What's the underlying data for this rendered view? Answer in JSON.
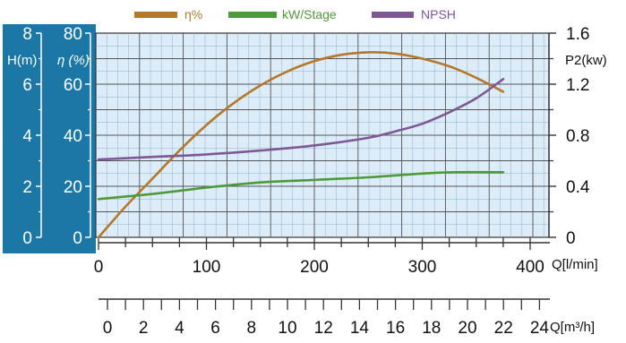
{
  "chart_data": {
    "type": "line",
    "legend": {
      "placement": "top"
    },
    "grid": true,
    "x": {
      "label": "Q[l/min]",
      "range": [
        0,
        400
      ],
      "ticks": [
        0,
        100,
        200,
        300,
        400
      ]
    },
    "x2": {
      "label": "Q[m³/h]",
      "range": [
        0,
        24
      ],
      "ticks": [
        0,
        2,
        4,
        6,
        8,
        10,
        12,
        14,
        16,
        18,
        20,
        22,
        24
      ]
    },
    "y_head": {
      "label": "H(m)",
      "range": [
        0,
        8
      ],
      "ticks": [
        0,
        2,
        4,
        6,
        8
      ]
    },
    "y_eff": {
      "label": "η (%)",
      "range": [
        0,
        80
      ],
      "ticks": [
        0,
        20,
        40,
        60,
        80
      ]
    },
    "y_power": {
      "label": "P2(kw)",
      "range": [
        0,
        1.6
      ],
      "ticks": [
        0,
        0.4,
        0.8,
        1.2,
        1.6
      ]
    },
    "series": [
      {
        "name": "η%",
        "color": "#b5782b",
        "axis": "y_eff",
        "x": [
          0,
          25,
          50,
          75,
          100,
          125,
          150,
          175,
          200,
          225,
          250,
          275,
          300,
          325,
          350,
          375
        ],
        "y": [
          0,
          12,
          23,
          34,
          44,
          52.5,
          59.5,
          65,
          69,
          71.5,
          72.5,
          72,
          70,
          67,
          62.5,
          57
        ]
      },
      {
        "name": "kW/Stage",
        "color": "#4e9a3a",
        "axis": "y_power",
        "x": [
          0,
          50,
          100,
          150,
          200,
          250,
          300,
          330,
          375
        ],
        "y": [
          0.3,
          0.34,
          0.39,
          0.43,
          0.45,
          0.47,
          0.5,
          0.51,
          0.51
        ]
      },
      {
        "name": "NPSH",
        "color": "#7d5796",
        "axis": "y_power",
        "x": [
          0,
          50,
          100,
          150,
          200,
          250,
          275,
          300,
          325,
          350,
          375
        ],
        "y": [
          0.61,
          0.63,
          0.65,
          0.68,
          0.72,
          0.78,
          0.83,
          0.89,
          0.98,
          1.09,
          1.24
        ]
      }
    ]
  }
}
